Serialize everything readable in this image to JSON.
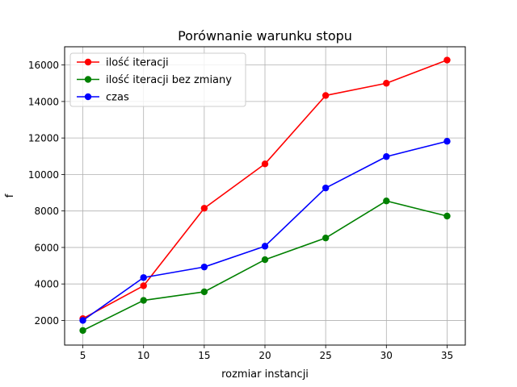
{
  "chart_data": {
    "type": "line",
    "title": "Porównanie warunku stopu",
    "xlabel": "rozmiar instancji",
    "ylabel": "f",
    "x": [
      5,
      10,
      15,
      20,
      25,
      30,
      35
    ],
    "xlim": [
      3.5,
      36.5
    ],
    "ylim": [
      650,
      17000
    ],
    "xticks": [
      5,
      10,
      15,
      20,
      25,
      30,
      35
    ],
    "yticks": [
      2000,
      4000,
      6000,
      8000,
      10000,
      12000,
      14000,
      16000
    ],
    "grid": true,
    "legend_position": "top-left",
    "series": [
      {
        "name": "ilość iteracji",
        "color": "#ff0000",
        "marker": "circle",
        "values": [
          2100,
          3900,
          8150,
          10580,
          14330,
          15000,
          16270
        ]
      },
      {
        "name": "ilość iteracji bez zmiany",
        "color": "#008000",
        "marker": "circle",
        "values": [
          1450,
          3100,
          3570,
          5330,
          6520,
          8550,
          7720
        ]
      },
      {
        "name": "czas",
        "color": "#0000ff",
        "marker": "circle",
        "values": [
          2000,
          4350,
          4930,
          6070,
          9260,
          10980,
          11820
        ]
      }
    ]
  }
}
